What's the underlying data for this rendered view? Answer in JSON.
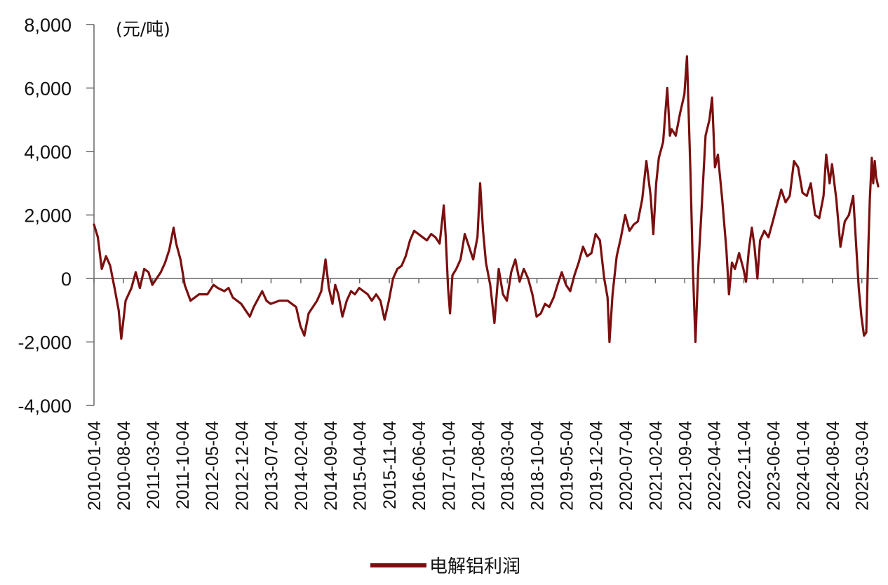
{
  "chart_data": {
    "type": "line",
    "unit_label": "(元/吨)",
    "ylim": [
      -4000,
      8000
    ],
    "y_ticks": [
      {
        "value": 8000,
        "label": "8,000"
      },
      {
        "value": 6000,
        "label": "6,000"
      },
      {
        "value": 4000,
        "label": "4,000"
      },
      {
        "value": 2000,
        "label": "2,000"
      },
      {
        "value": 0,
        "label": "0"
      },
      {
        "value": -2000,
        "label": "-2,000"
      },
      {
        "value": -4000,
        "label": "-4,000"
      }
    ],
    "x_range": [
      "2010-01-04",
      "2025-06-30"
    ],
    "x_ticks": [
      "2010-01-04",
      "2010-08-04",
      "2011-03-04",
      "2011-10-04",
      "2012-05-04",
      "2012-12-04",
      "2013-07-04",
      "2014-02-04",
      "2014-09-04",
      "2015-04-04",
      "2015-11-04",
      "2016-06-04",
      "2017-01-04",
      "2017-08-04",
      "2018-03-04",
      "2018-10-04",
      "2019-05-04",
      "2019-12-04",
      "2020-07-04",
      "2021-02-04",
      "2021-09-04",
      "2022-04-04",
      "2022-11-04",
      "2023-06-04",
      "2024-01-04",
      "2024-08-04",
      "2025-03-04"
    ],
    "grid": false,
    "legend_position": "bottom-center",
    "series": [
      {
        "name": "电解铝利润",
        "color": "#7b0f0f",
        "points": [
          [
            "2010-01-04",
            1700
          ],
          [
            "2010-02-01",
            1300
          ],
          [
            "2010-03-01",
            300
          ],
          [
            "2010-04-01",
            700
          ],
          [
            "2010-05-01",
            400
          ],
          [
            "2010-06-01",
            -300
          ],
          [
            "2010-07-01",
            -1000
          ],
          [
            "2010-07-20",
            -1900
          ],
          [
            "2010-08-20",
            -700
          ],
          [
            "2010-10-01",
            -300
          ],
          [
            "2010-11-01",
            200
          ],
          [
            "2010-12-01",
            -300
          ],
          [
            "2011-01-01",
            300
          ],
          [
            "2011-02-01",
            200
          ],
          [
            "2011-03-01",
            -200
          ],
          [
            "2011-04-01",
            0
          ],
          [
            "2011-05-01",
            200
          ],
          [
            "2011-06-01",
            500
          ],
          [
            "2011-07-01",
            900
          ],
          [
            "2011-08-01",
            1600
          ],
          [
            "2011-08-20",
            1100
          ],
          [
            "2011-09-20",
            600
          ],
          [
            "2011-10-20",
            -200
          ],
          [
            "2011-12-01",
            -700
          ],
          [
            "2012-01-01",
            -600
          ],
          [
            "2012-02-01",
            -500
          ],
          [
            "2012-04-01",
            -500
          ],
          [
            "2012-05-15",
            -200
          ],
          [
            "2012-06-15",
            -300
          ],
          [
            "2012-08-01",
            -400
          ],
          [
            "2012-09-01",
            -300
          ],
          [
            "2012-10-01",
            -600
          ],
          [
            "2012-12-01",
            -800
          ],
          [
            "2013-01-01",
            -1000
          ],
          [
            "2013-02-01",
            -1200
          ],
          [
            "2013-03-01",
            -900
          ],
          [
            "2013-05-01",
            -400
          ],
          [
            "2013-06-01",
            -700
          ],
          [
            "2013-07-01",
            -800
          ],
          [
            "2013-09-01",
            -700
          ],
          [
            "2013-11-01",
            -700
          ],
          [
            "2014-01-01",
            -900
          ],
          [
            "2014-02-01",
            -1500
          ],
          [
            "2014-03-01",
            -1800
          ],
          [
            "2014-04-01",
            -1100
          ],
          [
            "2014-06-01",
            -700
          ],
          [
            "2014-07-01",
            -400
          ],
          [
            "2014-08-01",
            600
          ],
          [
            "2014-08-25",
            -300
          ],
          [
            "2014-09-20",
            -800
          ],
          [
            "2014-10-10",
            -200
          ],
          [
            "2014-11-01",
            -500
          ],
          [
            "2014-12-01",
            -1200
          ],
          [
            "2015-01-01",
            -700
          ],
          [
            "2015-02-01",
            -400
          ],
          [
            "2015-03-01",
            -500
          ],
          [
            "2015-04-01",
            -300
          ],
          [
            "2015-05-01",
            -400
          ],
          [
            "2015-06-01",
            -500
          ],
          [
            "2015-07-01",
            -700
          ],
          [
            "2015-08-01",
            -500
          ],
          [
            "2015-09-01",
            -700
          ],
          [
            "2015-10-01",
            -1300
          ],
          [
            "2015-11-01",
            -700
          ],
          [
            "2015-12-01",
            0
          ],
          [
            "2016-01-01",
            300
          ],
          [
            "2016-02-01",
            400
          ],
          [
            "2016-03-01",
            700
          ],
          [
            "2016-04-01",
            1200
          ],
          [
            "2016-05-01",
            1500
          ],
          [
            "2016-06-01",
            1400
          ],
          [
            "2016-07-01",
            1300
          ],
          [
            "2016-08-01",
            1200
          ],
          [
            "2016-09-01",
            1400
          ],
          [
            "2016-10-01",
            1300
          ],
          [
            "2016-11-01",
            1100
          ],
          [
            "2016-12-01",
            2300
          ],
          [
            "2016-12-15",
            1300
          ],
          [
            "2017-01-01",
            -300
          ],
          [
            "2017-01-15",
            -1100
          ],
          [
            "2017-02-01",
            100
          ],
          [
            "2017-03-01",
            300
          ],
          [
            "2017-04-01",
            600
          ],
          [
            "2017-05-01",
            1400
          ],
          [
            "2017-06-01",
            1000
          ],
          [
            "2017-07-01",
            600
          ],
          [
            "2017-08-01",
            1300
          ],
          [
            "2017-08-20",
            3000
          ],
          [
            "2017-09-10",
            1500
          ],
          [
            "2017-10-01",
            500
          ],
          [
            "2017-11-01",
            -200
          ],
          [
            "2017-12-01",
            -1400
          ],
          [
            "2018-01-01",
            300
          ],
          [
            "2018-02-01",
            -500
          ],
          [
            "2018-03-01",
            -700
          ],
          [
            "2018-04-01",
            200
          ],
          [
            "2018-05-01",
            600
          ],
          [
            "2018-06-01",
            -100
          ],
          [
            "2018-07-01",
            300
          ],
          [
            "2018-08-01",
            0
          ],
          [
            "2018-09-01",
            -500
          ],
          [
            "2018-10-01",
            -1200
          ],
          [
            "2018-11-01",
            -1100
          ],
          [
            "2018-12-01",
            -800
          ],
          [
            "2019-01-01",
            -900
          ],
          [
            "2019-02-01",
            -600
          ],
          [
            "2019-03-01",
            -200
          ],
          [
            "2019-04-01",
            200
          ],
          [
            "2019-05-01",
            -200
          ],
          [
            "2019-06-01",
            -400
          ],
          [
            "2019-07-01",
            100
          ],
          [
            "2019-08-01",
            500
          ],
          [
            "2019-09-01",
            1000
          ],
          [
            "2019-10-01",
            700
          ],
          [
            "2019-11-01",
            800
          ],
          [
            "2019-12-01",
            1400
          ],
          [
            "2020-01-01",
            1200
          ],
          [
            "2020-02-01",
            0
          ],
          [
            "2020-02-25",
            -600
          ],
          [
            "2020-03-10",
            -2000
          ],
          [
            "2020-04-01",
            -500
          ],
          [
            "2020-05-01",
            700
          ],
          [
            "2020-06-01",
            1300
          ],
          [
            "2020-07-01",
            2000
          ],
          [
            "2020-08-01",
            1500
          ],
          [
            "2020-09-01",
            1700
          ],
          [
            "2020-10-01",
            1800
          ],
          [
            "2020-11-01",
            2500
          ],
          [
            "2020-12-01",
            3700
          ],
          [
            "2021-01-01",
            2600
          ],
          [
            "2021-01-20",
            1400
          ],
          [
            "2021-02-10",
            3000
          ],
          [
            "2021-03-01",
            3800
          ],
          [
            "2021-04-01",
            4300
          ],
          [
            "2021-05-01",
            6000
          ],
          [
            "2021-05-20",
            4500
          ],
          [
            "2021-06-01",
            4700
          ],
          [
            "2021-07-01",
            4500
          ],
          [
            "2021-08-01",
            5200
          ],
          [
            "2021-09-01",
            5800
          ],
          [
            "2021-09-20",
            7000
          ],
          [
            "2021-10-15",
            3300
          ],
          [
            "2021-11-01",
            400
          ],
          [
            "2021-11-20",
            -2000
          ],
          [
            "2021-12-10",
            300
          ],
          [
            "2022-01-01",
            2000
          ],
          [
            "2022-02-01",
            4500
          ],
          [
            "2022-03-01",
            5000
          ],
          [
            "2022-03-20",
            5700
          ],
          [
            "2022-04-10",
            3500
          ],
          [
            "2022-05-01",
            3900
          ],
          [
            "2022-06-01",
            2500
          ],
          [
            "2022-07-01",
            900
          ],
          [
            "2022-07-20",
            -500
          ],
          [
            "2022-08-10",
            500
          ],
          [
            "2022-09-01",
            300
          ],
          [
            "2022-10-01",
            800
          ],
          [
            "2022-11-01",
            300
          ],
          [
            "2022-11-20",
            -100
          ],
          [
            "2022-12-10",
            900
          ],
          [
            "2023-01-01",
            1600
          ],
          [
            "2023-01-20",
            1000
          ],
          [
            "2023-02-10",
            0
          ],
          [
            "2023-03-01",
            1200
          ],
          [
            "2023-04-01",
            1500
          ],
          [
            "2023-05-01",
            1300
          ],
          [
            "2023-06-01",
            1800
          ],
          [
            "2023-07-01",
            2300
          ],
          [
            "2023-08-01",
            2800
          ],
          [
            "2023-09-01",
            2400
          ],
          [
            "2023-10-01",
            2600
          ],
          [
            "2023-11-01",
            3700
          ],
          [
            "2023-12-01",
            3500
          ],
          [
            "2024-01-01",
            2700
          ],
          [
            "2024-02-01",
            2600
          ],
          [
            "2024-03-01",
            3000
          ],
          [
            "2024-04-01",
            2000
          ],
          [
            "2024-05-01",
            1900
          ],
          [
            "2024-06-01",
            2600
          ],
          [
            "2024-06-20",
            3900
          ],
          [
            "2024-07-15",
            3000
          ],
          [
            "2024-08-01",
            3600
          ],
          [
            "2024-09-01",
            2500
          ],
          [
            "2024-10-01",
            1000
          ],
          [
            "2024-11-01",
            1800
          ],
          [
            "2024-12-01",
            2000
          ],
          [
            "2025-01-01",
            2600
          ],
          [
            "2025-01-20",
            1200
          ],
          [
            "2025-02-10",
            -300
          ],
          [
            "2025-03-01",
            -1200
          ],
          [
            "2025-03-20",
            -1800
          ],
          [
            "2025-04-05",
            -1700
          ],
          [
            "2025-04-20",
            1000
          ],
          [
            "2025-05-01",
            2500
          ],
          [
            "2025-05-15",
            3800
          ],
          [
            "2025-05-25",
            3000
          ],
          [
            "2025-06-05",
            3700
          ],
          [
            "2025-06-15",
            3200
          ],
          [
            "2025-06-30",
            2900
          ]
        ]
      }
    ]
  }
}
